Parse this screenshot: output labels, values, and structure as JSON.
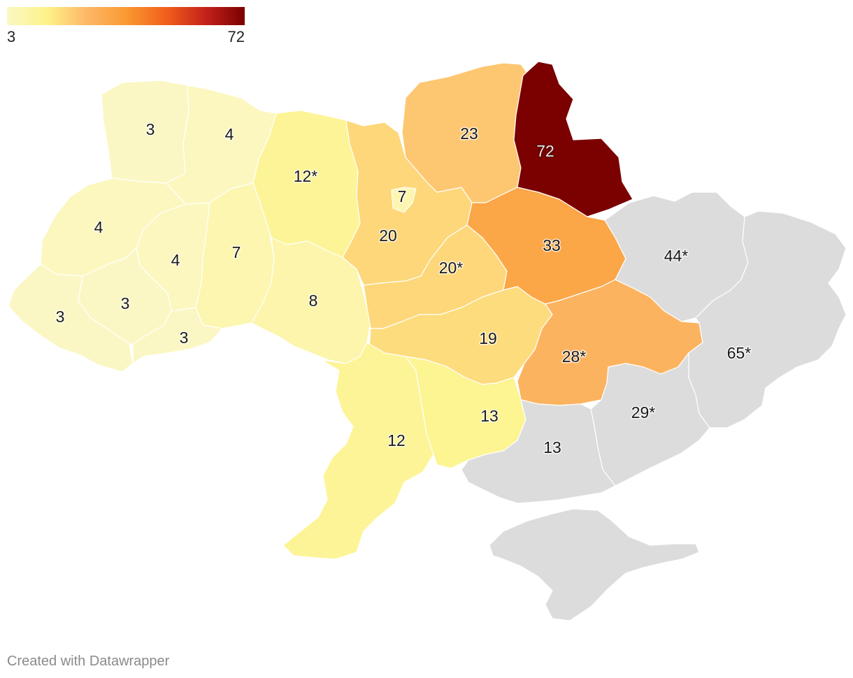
{
  "legend": {
    "min_label": "3",
    "max_label": "72",
    "gradient": [
      "#fbf7c4",
      "#fdf38a",
      "#fdb868",
      "#f99a32",
      "#f2601c",
      "#c4221b",
      "#7b0000"
    ]
  },
  "no_data_color": "#dcdcdc",
  "regions": [
    {
      "id": "volyn",
      "label": "3",
      "value": 3
    },
    {
      "id": "rivne",
      "label": "4",
      "value": 4
    },
    {
      "id": "lviv",
      "label": "4",
      "value": 4
    },
    {
      "id": "ternopil",
      "label": "4",
      "value": 4
    },
    {
      "id": "khmelnytskyi",
      "label": "7",
      "value": 7
    },
    {
      "id": "zakarpattia",
      "label": "3",
      "value": 3
    },
    {
      "id": "ivano-frankivsk",
      "label": "3",
      "value": 3
    },
    {
      "id": "chernivtsi",
      "label": "3",
      "value": 3
    },
    {
      "id": "zhytomyr",
      "label": "12*",
      "value": 12
    },
    {
      "id": "vinnytsia",
      "label": "8",
      "value": 8
    },
    {
      "id": "kyiv-oblast",
      "label": "20",
      "value": 20
    },
    {
      "id": "kyiv-city",
      "label": "7",
      "value": 7
    },
    {
      "id": "chernihiv",
      "label": "23",
      "value": 23
    },
    {
      "id": "sumy",
      "label": "72",
      "value": 72
    },
    {
      "id": "cherkasy",
      "label": "20*",
      "value": 20
    },
    {
      "id": "poltava",
      "label": "33",
      "value": 33
    },
    {
      "id": "kirovohrad",
      "label": "19",
      "value": 19
    },
    {
      "id": "dnipropetrovsk",
      "label": "28*",
      "value": 28
    },
    {
      "id": "odesa",
      "label": "12",
      "value": 12
    },
    {
      "id": "mykolaiv",
      "label": "13",
      "value": 13
    },
    {
      "id": "kharkiv",
      "label": "44*",
      "value": null
    },
    {
      "id": "luhansk-donetsk",
      "label": "65*",
      "value": null
    },
    {
      "id": "zaporizhzhia",
      "label": "29*",
      "value": null
    },
    {
      "id": "kherson",
      "label": "13",
      "value": null
    },
    {
      "id": "crimea",
      "label": "",
      "value": null
    }
  ],
  "credit": "Created with Datawrapper"
}
